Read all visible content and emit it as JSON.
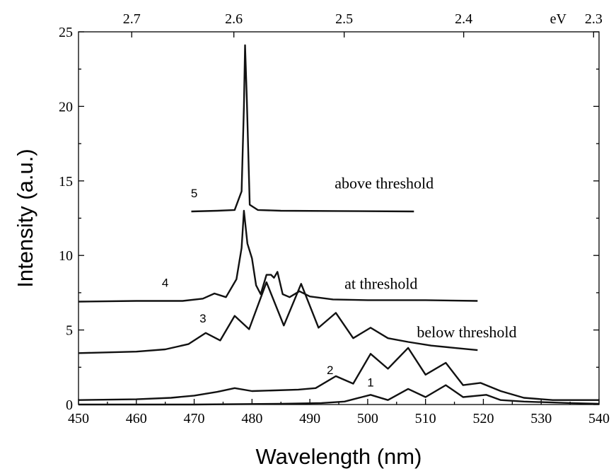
{
  "chart_data": {
    "type": "line",
    "xlabel": "Wavelength (nm)",
    "ylabel": "Intensity (a.u.)",
    "xlim": [
      450,
      540
    ],
    "ylim": [
      0,
      25
    ],
    "x_ticks": [
      "450",
      "460",
      "470",
      "480",
      "490",
      "500",
      "510",
      "520",
      "530",
      "540"
    ],
    "y_ticks": [
      "0",
      "5",
      "10",
      "15",
      "20",
      "25"
    ],
    "top_axis": {
      "unit": "eV",
      "ticks": [
        {
          "ev": 2.7,
          "label": "2.7"
        },
        {
          "ev": 2.6,
          "label": "2.6"
        },
        {
          "ev": 2.5,
          "label": "2.5"
        },
        {
          "ev": 2.4,
          "label": "2.4"
        },
        {
          "ev": 2.3,
          "label": "2.3"
        }
      ]
    },
    "grid": false,
    "series": [
      {
        "name": "1",
        "label_at": [
          500.5,
          1.2
        ],
        "x": [
          450,
          470,
          485,
          492,
          496,
          500.5,
          503.5,
          507,
          510,
          513.5,
          516.5,
          520.5,
          523,
          527,
          535,
          540
        ],
        "y": [
          0,
          0,
          0.05,
          0.1,
          0.2,
          0.65,
          0.3,
          1.05,
          0.5,
          1.3,
          0.5,
          0.65,
          0.3,
          0.2,
          0.1,
          0.05
        ]
      },
      {
        "name": "2",
        "label_at": [
          493.5,
          2.05
        ],
        "x": [
          450,
          460,
          466,
          470,
          474,
          477,
          480,
          484,
          488,
          491,
          494.5,
          497.5,
          500.5,
          503.5,
          507,
          510,
          513.5,
          516.5,
          519.5,
          523,
          527,
          532,
          540
        ],
        "y": [
          0.3,
          0.35,
          0.45,
          0.6,
          0.85,
          1.1,
          0.9,
          0.95,
          1.0,
          1.1,
          1.9,
          1.4,
          3.4,
          2.4,
          3.8,
          2.0,
          2.8,
          1.3,
          1.45,
          0.9,
          0.45,
          0.3,
          0.3
        ]
      },
      {
        "name": "3",
        "label_at": [
          471.5,
          5.5
        ],
        "x": [
          450,
          460,
          465,
          469,
          472,
          474.5,
          477,
          479.5,
          482.5,
          485.5,
          488.5,
          491.5,
          494.5,
          497.5,
          500.5,
          503.5,
          507,
          511,
          515,
          519
        ],
        "y": [
          3.45,
          3.55,
          3.7,
          4.05,
          4.8,
          4.3,
          5.95,
          5.05,
          8.2,
          5.3,
          8.1,
          5.15,
          6.15,
          4.45,
          5.15,
          4.45,
          4.2,
          3.95,
          3.8,
          3.65
        ]
      },
      {
        "name": "4",
        "label_at": [
          465,
          7.9
        ],
        "x": [
          450,
          460,
          468,
          471.5,
          473.5,
          475.5,
          477.3,
          478.2,
          478.6,
          479.2,
          480,
          480.7,
          481.5,
          482.5,
          483.3,
          483.8,
          484.4,
          485.3,
          486.5,
          488.2,
          490,
          494,
          500,
          510,
          519
        ],
        "y": [
          6.9,
          6.95,
          6.95,
          7.1,
          7.45,
          7.2,
          8.4,
          10.5,
          13.0,
          10.8,
          9.8,
          8.0,
          7.4,
          8.7,
          8.7,
          8.5,
          8.9,
          7.4,
          7.2,
          7.6,
          7.25,
          7.05,
          7.0,
          7.0,
          6.95
        ]
      },
      {
        "name": "5",
        "label_at": [
          470,
          13.9
        ],
        "x": [
          469.5,
          474,
          477,
          478.2,
          478.6,
          478.8,
          479.1,
          479.6,
          481,
          485,
          495,
          508
        ],
        "y": [
          12.95,
          13.0,
          13.05,
          14.3,
          20.0,
          24.1,
          20.5,
          13.4,
          13.05,
          13.0,
          12.98,
          12.95
        ]
      }
    ],
    "annotations": [
      {
        "text": "above threshold",
        "at": [
          494.3,
          14.5
        ]
      },
      {
        "text": "at threshold",
        "at": [
          496,
          7.75
        ]
      },
      {
        "text": "below threshold",
        "at": [
          508.5,
          4.5
        ]
      }
    ]
  }
}
